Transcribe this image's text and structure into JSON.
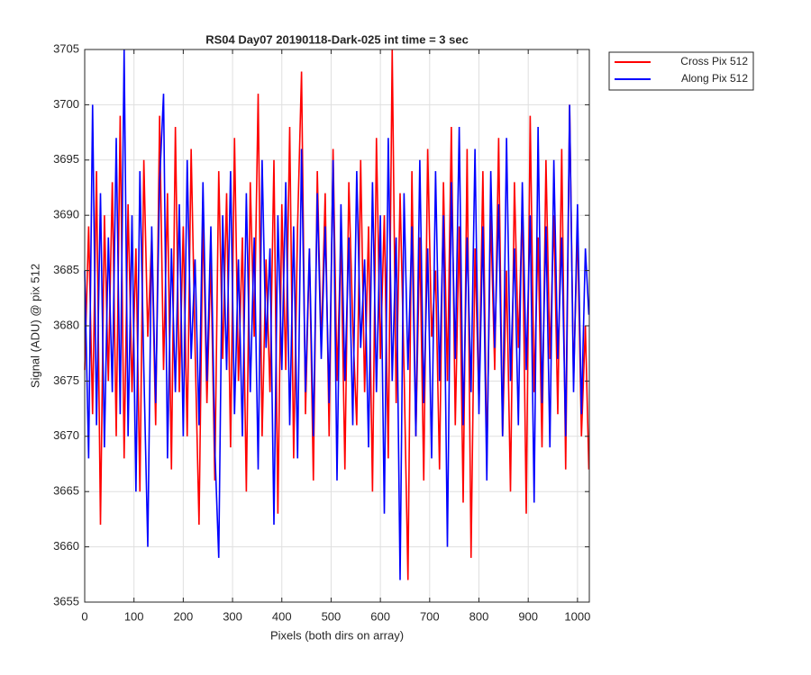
{
  "chart_data": {
    "type": "line",
    "title": "RS04 Day07 20190118-Dark-025 int time = 3 sec",
    "xlabel": "Pixels (both dirs on array)",
    "ylabel": "Signal (ADU) @ pix 512",
    "x": [
      0,
      8,
      16,
      24,
      32,
      40,
      48,
      56,
      64,
      72,
      80,
      88,
      96,
      104,
      112,
      120,
      128,
      136,
      144,
      152,
      160,
      168,
      176,
      184,
      192,
      200,
      208,
      216,
      224,
      232,
      240,
      248,
      256,
      264,
      272,
      280,
      288,
      296,
      304,
      312,
      320,
      328,
      336,
      344,
      352,
      360,
      368,
      376,
      384,
      392,
      400,
      408,
      416,
      424,
      432,
      440,
      448,
      456,
      464,
      472,
      480,
      488,
      496,
      504,
      512,
      520,
      528,
      536,
      544,
      552,
      560,
      568,
      576,
      584,
      592,
      600,
      608,
      616,
      624,
      632,
      640,
      648,
      656,
      664,
      672,
      680,
      688,
      696,
      704,
      712,
      720,
      728,
      736,
      744,
      752,
      760,
      768,
      776,
      784,
      792,
      800,
      808,
      816,
      824,
      832,
      840,
      848,
      856,
      864,
      872,
      880,
      888,
      896,
      904,
      912,
      920,
      928,
      936,
      944,
      952,
      960,
      968,
      976,
      984,
      992,
      1000,
      1008,
      1016,
      1023
    ],
    "series": [
      {
        "name": "Cross Pix 512",
        "color": "#ff0000",
        "values": [
          3676,
          3689,
          3672,
          3694,
          3662,
          3690,
          3675,
          3693,
          3670,
          3699,
          3668,
          3691,
          3674,
          3687,
          3665,
          3695,
          3679,
          3688,
          3671,
          3699,
          3676,
          3692,
          3667,
          3698,
          3674,
          3689,
          3670,
          3696,
          3678,
          3662,
          3690,
          3673,
          3686,
          3666,
          3694,
          3677,
          3692,
          3669,
          3697,
          3675,
          3688,
          3665,
          3693,
          3679,
          3701,
          3670,
          3686,
          3674,
          3695,
          3663,
          3691,
          3676,
          3698,
          3668,
          3689,
          3703,
          3672,
          3687,
          3666,
          3694,
          3678,
          3692,
          3670,
          3696,
          3675,
          3688,
          3667,
          3693,
          3680,
          3671,
          3695,
          3674,
          3689,
          3665,
          3697,
          3677,
          3690,
          3668,
          3705,
          3673,
          3692,
          3676,
          3657,
          3694,
          3670,
          3688,
          3666,
          3696,
          3679,
          3685,
          3667,
          3693,
          3675,
          3698,
          3671,
          3689,
          3664,
          3696,
          3659,
          3687,
          3673,
          3694,
          3668,
          3690,
          3676,
          3697,
          3670,
          3685,
          3665,
          3693,
          3678,
          3691,
          3663,
          3699,
          3674,
          3688,
          3669,
          3695,
          3677,
          3690,
          3672,
          3696,
          3667,
          3700,
          3675,
          3689,
          3670,
          3680,
          3667
        ]
      },
      {
        "name": "Along Pix 512",
        "color": "#0000ff",
        "values": [
          3685,
          3668,
          3700,
          3671,
          3692,
          3669,
          3688,
          3674,
          3697,
          3672,
          3705,
          3670,
          3690,
          3665,
          3694,
          3676,
          3660,
          3689,
          3673,
          3693,
          3701,
          3668,
          3687,
          3674,
          3691,
          3670,
          3695,
          3677,
          3686,
          3671,
          3693,
          3675,
          3689,
          3669,
          3659,
          3690,
          3676,
          3694,
          3672,
          3686,
          3670,
          3692,
          3674,
          3688,
          3667,
          3695,
          3678,
          3687,
          3662,
          3690,
          3676,
          3693,
          3671,
          3689,
          3668,
          3696,
          3674,
          3687,
          3670,
          3692,
          3677,
          3689,
          3673,
          3695,
          3666,
          3691,
          3675,
          3688,
          3671,
          3694,
          3678,
          3686,
          3669,
          3693,
          3674,
          3690,
          3663,
          3697,
          3675,
          3688,
          3657,
          3692,
          3676,
          3689,
          3670,
          3695,
          3673,
          3687,
          3668,
          3694,
          3675,
          3690,
          3660,
          3693,
          3677,
          3698,
          3671,
          3688,
          3674,
          3696,
          3672,
          3689,
          3666,
          3694,
          3678,
          3691,
          3670,
          3697,
          3675,
          3687,
          3671,
          3693,
          3676,
          3690,
          3664,
          3698,
          3673,
          3689,
          3669,
          3695,
          3677,
          3688,
          3670,
          3700,
          3674,
          3691,
          3672,
          3687,
          3681
        ]
      }
    ],
    "xlim": [
      0,
      1024
    ],
    "xticks": [
      0,
      100,
      200,
      300,
      400,
      500,
      600,
      700,
      800,
      900,
      1000
    ],
    "ylim": [
      3655,
      3705
    ],
    "yticks": [
      3655,
      3660,
      3665,
      3670,
      3675,
      3680,
      3685,
      3690,
      3695,
      3700,
      3705
    ],
    "grid": true,
    "legend": "outside-top-right"
  }
}
